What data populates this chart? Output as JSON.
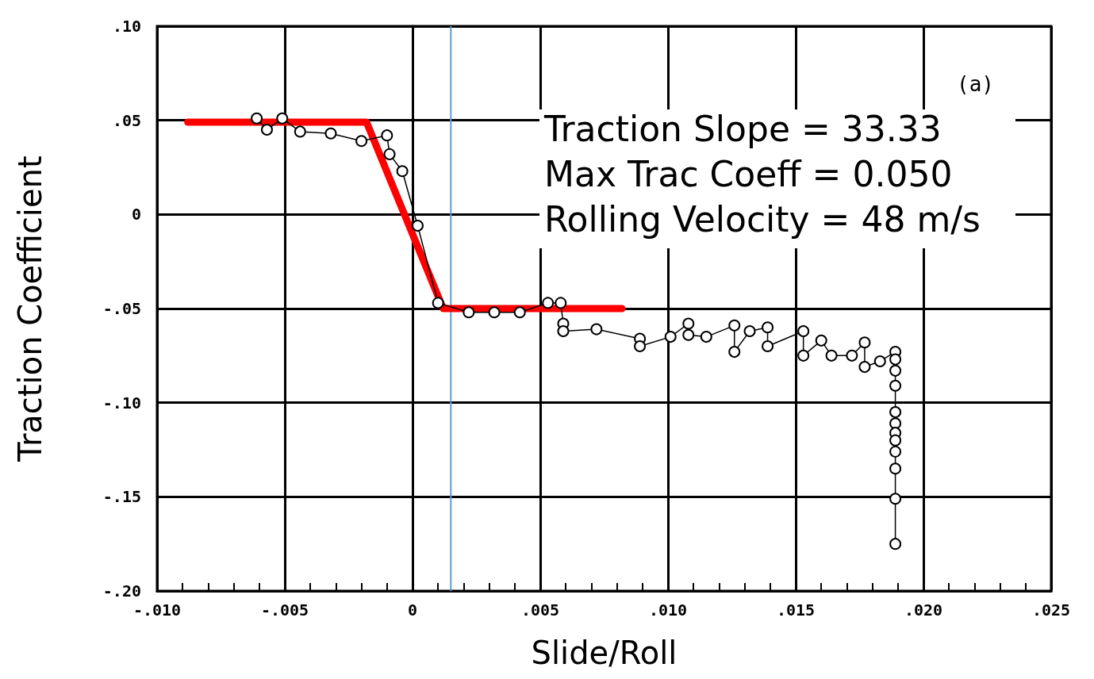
{
  "chart_data": {
    "type": "line",
    "xlabel": "Slide/Roll",
    "ylabel": "Traction Coefficient",
    "annotations": [
      "(a)",
      "Traction Slope = 33.33",
      "Max Trac Coeff = 0.050",
      "Rolling Velocity = 48 m/s"
    ],
    "xlim": [
      -0.01,
      0.025
    ],
    "xticks": [
      {
        "value": -0.01,
        "label": "-.010"
      },
      {
        "value": -0.005,
        "label": "-.005"
      },
      0,
      {
        "value": 0.005,
        "label": ".005"
      },
      {
        "value": 0.01,
        "label": ".010"
      },
      {
        "value": 0.015,
        "label": ".015"
      },
      {
        "value": 0.02,
        "label": ".020"
      },
      {
        "value": 0.025,
        "label": ".025"
      }
    ],
    "ylim": [
      -0.2,
      0.1
    ],
    "yticks": [
      {
        "value": -0.2,
        "label": "-.20"
      },
      {
        "value": -0.15,
        "label": "-.15"
      },
      {
        "value": -0.1,
        "label": "-.10"
      },
      {
        "value": -0.05,
        "label": "-.05"
      },
      0,
      {
        "value": 0.05,
        "label": ".05"
      },
      {
        "value": 0.1,
        "label": ".10"
      }
    ],
    "grid": true,
    "series": [
      {
        "color": "#000000",
        "marker": "circle",
        "x": [
          -0.0061,
          -0.0057,
          -0.0051,
          -0.0044,
          -0.0032,
          -0.002,
          -0.001,
          -0.0009,
          -0.0004,
          0.0002,
          0.001,
          0.0022,
          0.0032,
          0.0042,
          0.0053,
          0.0058,
          0.0059,
          0.0059,
          0.0072,
          0.0089,
          0.0089,
          0.0101,
          0.0108,
          0.0108,
          0.0115,
          0.0126,
          0.0126,
          0.0132,
          0.0139,
          0.0139,
          0.0153,
          0.0153,
          0.016,
          0.0164,
          0.0172,
          0.0177,
          0.0177,
          0.0183,
          0.0189,
          0.0189,
          0.0189,
          0.0189,
          0.0189,
          0.0189,
          0.0189,
          0.0189,
          0.0189,
          0.0189,
          0.0189,
          0.0189
        ],
        "values": [
          0.051,
          0.045,
          0.051,
          0.044,
          0.043,
          0.039,
          0.042,
          0.032,
          0.023,
          -0.006,
          -0.047,
          -0.052,
          -0.052,
          -0.052,
          -0.047,
          -0.047,
          -0.058,
          -0.062,
          -0.061,
          -0.066,
          -0.07,
          -0.065,
          -0.058,
          -0.064,
          -0.065,
          -0.059,
          -0.073,
          -0.062,
          -0.06,
          -0.07,
          -0.062,
          -0.075,
          -0.067,
          -0.075,
          -0.075,
          -0.068,
          -0.081,
          -0.078,
          -0.073,
          -0.077,
          -0.083,
          -0.091,
          -0.105,
          -0.111,
          -0.116,
          -0.12,
          -0.126,
          -0.135,
          -0.151,
          -0.175
        ]
      },
      {
        "color": "#ff0000",
        "marker": "none",
        "x": [
          -0.0088,
          -0.0018,
          0.0012,
          0.0082
        ],
        "values": [
          0.049,
          0.049,
          -0.05,
          -0.05
        ]
      }
    ],
    "ref_lines": [
      {
        "axis": "x",
        "value": 0.0015,
        "color": "#5b9bd5"
      }
    ]
  }
}
